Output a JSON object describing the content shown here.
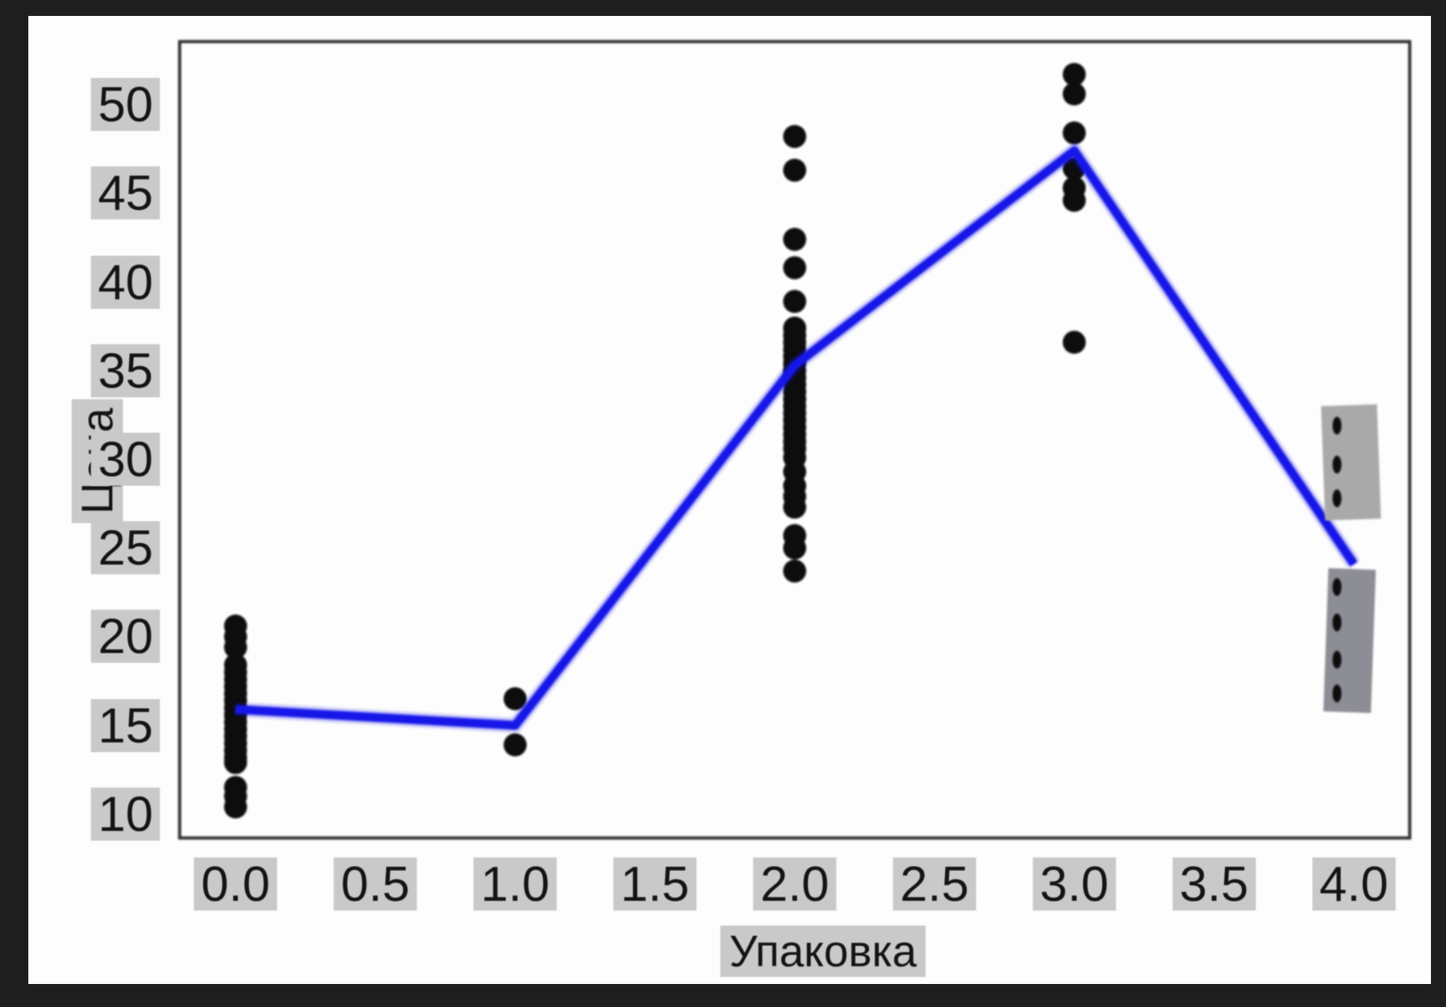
{
  "figure": {
    "outer_background": "#1e1e1e",
    "figure_background": "#fdfdfd",
    "spine_color": "#2e2e2e",
    "tick_label_background": "#c9c9c9",
    "text_color": "#141414"
  },
  "chart_data": {
    "type": "scatter",
    "description": "Strip plot of price per packaging category with blue mean line (pointplot style)",
    "title": "",
    "xlabel": "Упаковка",
    "ylabel": "Цена",
    "xlim": [
      -0.2,
      4.2
    ],
    "ylim": [
      8.65,
      53.55
    ],
    "x_ticks": [
      0.0,
      0.5,
      1.0,
      1.5,
      2.0,
      2.5,
      3.0,
      3.5,
      4.0
    ],
    "x_tick_labels": [
      "0.0",
      "0.5",
      "1.0",
      "1.5",
      "2.0",
      "2.5",
      "3.0",
      "3.5",
      "4.0"
    ],
    "y_ticks": [
      10,
      15,
      20,
      25,
      30,
      35,
      40,
      45,
      50
    ],
    "y_tick_labels": [
      "10",
      "15",
      "20",
      "25",
      "30",
      "35",
      "40",
      "45",
      "50"
    ],
    "grid": false,
    "legend": "none",
    "point_color": "#070707",
    "series": [
      {
        "name": "points-x0",
        "x": 0,
        "marker": {
          "r": 13
        },
        "values": [
          20.6,
          20.0,
          19.4,
          18.4,
          18.0,
          17.6,
          17.2,
          16.8,
          16.4,
          16.0,
          15.6,
          15.2,
          14.8,
          14.4,
          14.0,
          13.6,
          13.2,
          12.9,
          11.5,
          11.0,
          10.4
        ]
      },
      {
        "name": "points-x1",
        "x": 1,
        "marker": {
          "r": 13
        },
        "values": [
          16.5,
          13.9
        ]
      },
      {
        "name": "points-x2",
        "x": 2,
        "marker": {
          "r": 13
        },
        "values": [
          48.2,
          46.3,
          42.4,
          40.8,
          38.9,
          37.4,
          37.0,
          36.6,
          36.2,
          35.8,
          35.4,
          35.0,
          34.6,
          34.2,
          33.8,
          33.4,
          33.0,
          32.6,
          32.2,
          31.8,
          31.4,
          31.0,
          30.6,
          30.1,
          29.3,
          28.5,
          27.9,
          27.3,
          25.7,
          25.0,
          23.7
        ]
      },
      {
        "name": "points-x3",
        "x": 3,
        "marker": {
          "r": 13
        },
        "values": [
          51.7,
          50.6,
          48.4,
          46.4,
          45.3,
          44.6,
          36.6
        ]
      },
      {
        "name": "points-x4",
        "x": 4,
        "marker": {
          "rx": 5,
          "ry": 10,
          "dx": -19
        },
        "values": [
          31.9,
          29.7,
          27.8,
          22.8,
          20.8,
          18.7,
          16.8
        ]
      }
    ],
    "mean_line": {
      "name": "mean-line",
      "color": "#1414e8",
      "x": [
        0,
        1,
        2,
        3,
        4
      ],
      "y": [
        15.9,
        15.0,
        35.3,
        47.4,
        24.1
      ]
    },
    "overlay_boxes": [
      {
        "name": "gray-box-upper",
        "x0": 3.89,
        "x1": 4.09,
        "y0": 26.6,
        "y1": 33.05,
        "color": "#a9a9a9",
        "rotate_deg": -2
      },
      {
        "name": "gray-box-lower",
        "x0": 3.9,
        "x1": 4.07,
        "y0": 15.74,
        "y1": 23.82,
        "color": "#8d8d95",
        "rotate_deg": 2
      }
    ]
  }
}
